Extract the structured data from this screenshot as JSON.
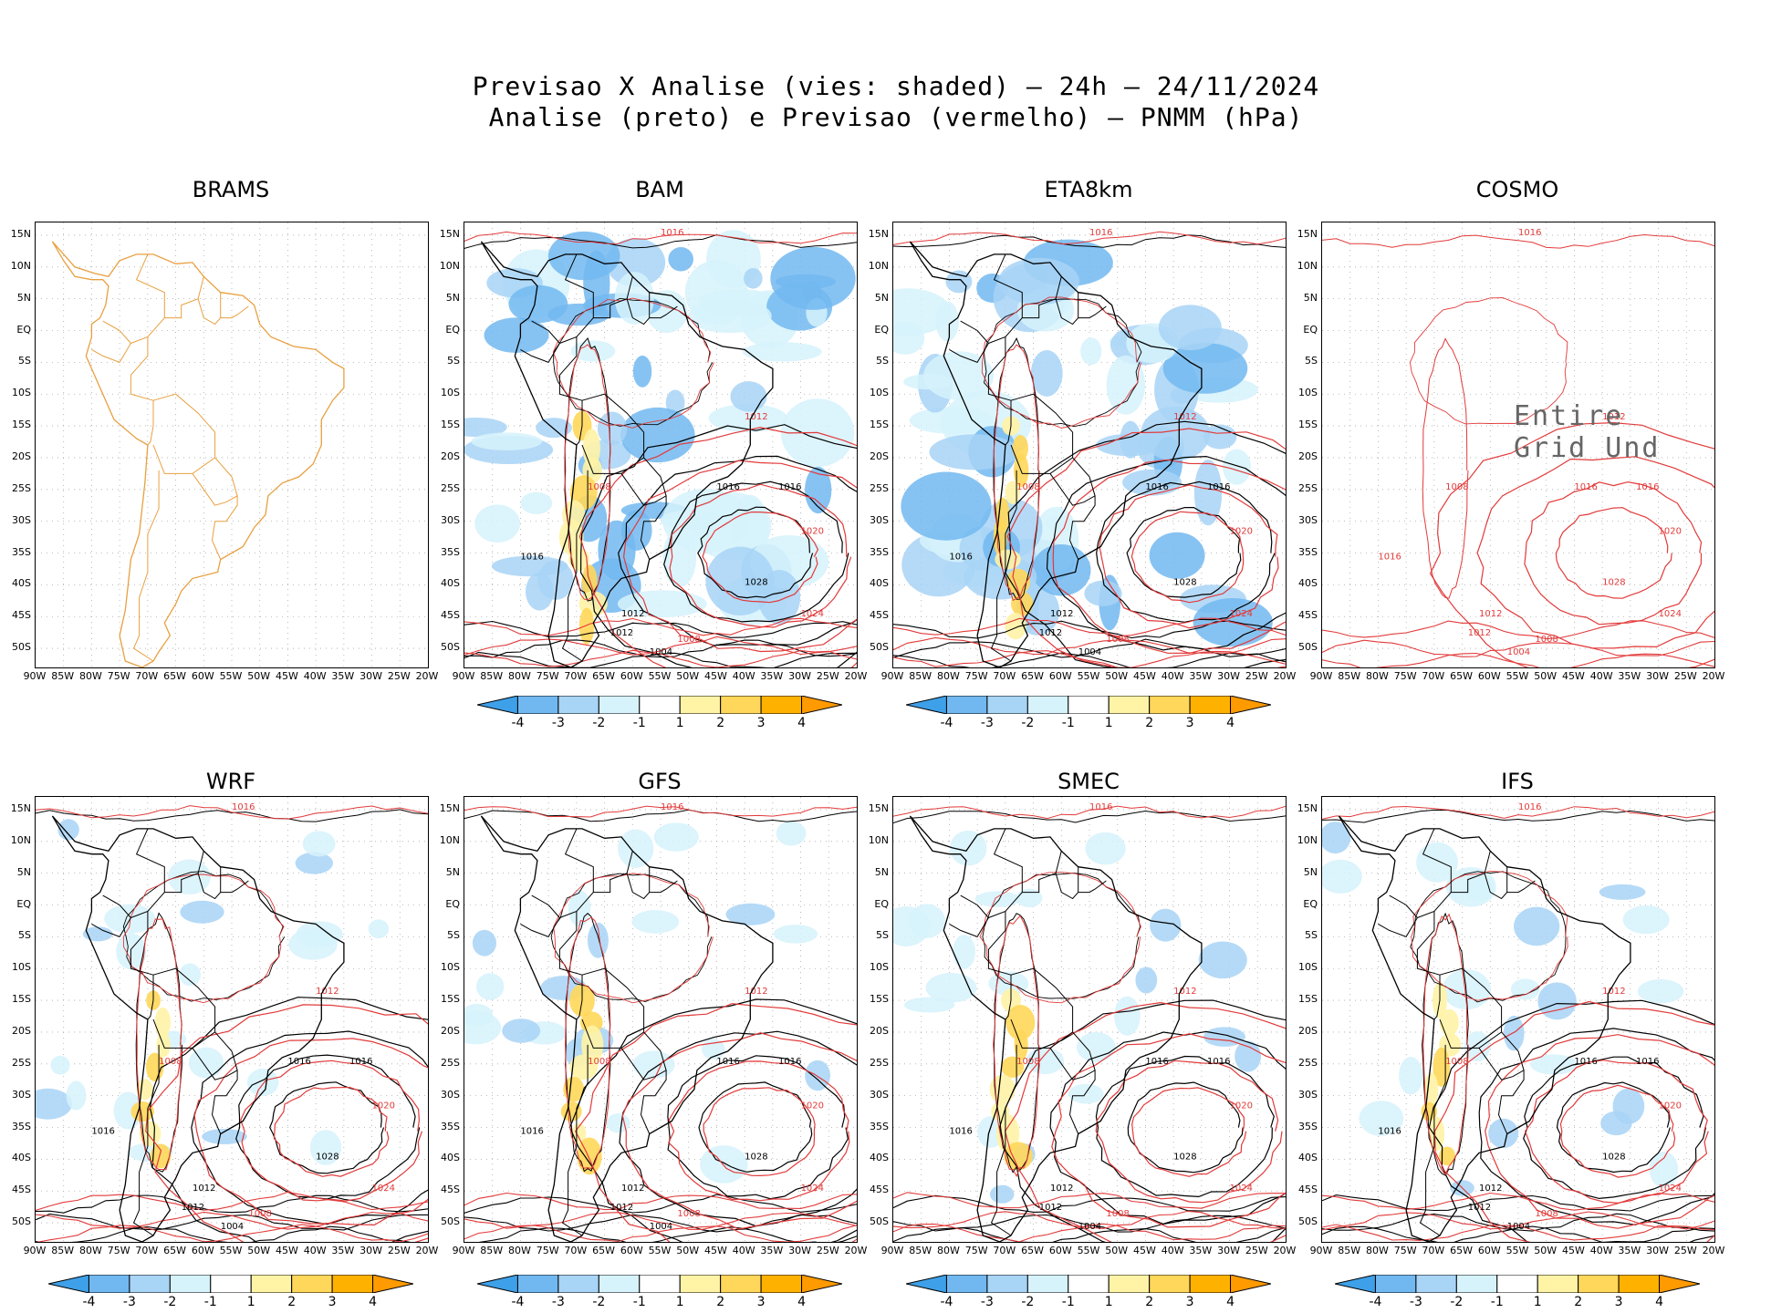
{
  "title": {
    "line1": "Previsao X Analise (vies: shaded) – 24h – 24/11/2024",
    "line2": "Analise (preto) e Previsao (vermelho) – PNMM (hPa)"
  },
  "lat_labels": [
    "15N",
    "10N",
    "5N",
    "EQ",
    "5S",
    "10S",
    "15S",
    "20S",
    "25S",
    "30S",
    "35S",
    "40S",
    "45S",
    "50S"
  ],
  "lon_labels": [
    "90W",
    "85W",
    "80W",
    "75W",
    "70W",
    "65W",
    "60W",
    "55W",
    "50W",
    "45W",
    "40W",
    "35W",
    "30W",
    "25W",
    "20W"
  ],
  "colorbar": {
    "ticks": [
      "-4",
      "-3",
      "-2",
      "-1",
      "1",
      "2",
      "3",
      "4"
    ],
    "colors": [
      "#3ea0e8",
      "#72b8f0",
      "#a8d4f6",
      "#d6f2fb",
      "#ffffff",
      "#fff3a6",
      "#ffd75a",
      "#ffb100",
      "#ff9a00"
    ]
  },
  "contour_colors": {
    "analysis": "#000000",
    "forecast": "#e23a3a",
    "coast_brams": "#e8a040"
  },
  "isobar_labels": [
    "1004",
    "1008",
    "1012",
    "1016",
    "1020",
    "1024",
    "1028"
  ],
  "panels": [
    {
      "name": "BRAMS",
      "has_colorbar": false,
      "undefined_note": ""
    },
    {
      "name": "BAM",
      "has_colorbar": true,
      "undefined_note": ""
    },
    {
      "name": "ETA8km",
      "has_colorbar": true,
      "undefined_note": ""
    },
    {
      "name": "COSMO",
      "has_colorbar": false,
      "undefined_note": "Entire Grid Und"
    },
    {
      "name": "WRF",
      "has_colorbar": true,
      "undefined_note": ""
    },
    {
      "name": "GFS",
      "has_colorbar": true,
      "undefined_note": ""
    },
    {
      "name": "SMEC",
      "has_colorbar": true,
      "undefined_note": ""
    },
    {
      "name": "IFS",
      "has_colorbar": true,
      "undefined_note": ""
    }
  ]
}
